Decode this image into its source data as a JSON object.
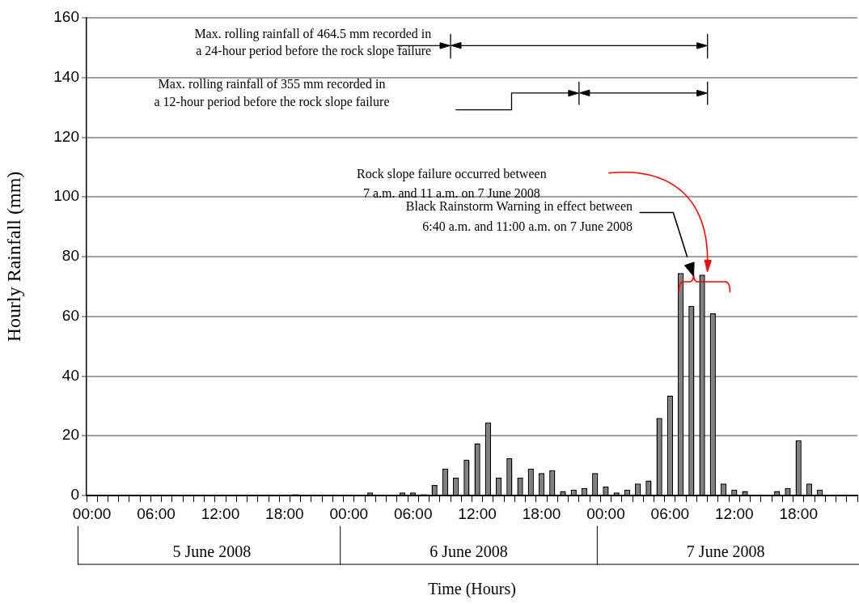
{
  "chart_data": {
    "type": "bar",
    "xlabel": "Time (Hours)",
    "ylabel": "Hourly Rainfall (mm)",
    "categories": [
      "00:00",
      null,
      null,
      null,
      null,
      null,
      "06:00",
      null,
      null,
      null,
      null,
      null,
      "12:00",
      null,
      null,
      null,
      null,
      null,
      "18:00",
      null,
      null,
      null,
      null,
      null,
      "00:00",
      null,
      null,
      null,
      null,
      null,
      "06:00",
      null,
      null,
      null,
      null,
      null,
      "12:00",
      null,
      null,
      null,
      null,
      null,
      "18:00",
      null,
      null,
      null,
      null,
      null,
      "00:00",
      null,
      null,
      null,
      null,
      null,
      "06:00",
      null,
      null,
      null,
      null,
      null,
      "12:00",
      null,
      null,
      null,
      null,
      null,
      "18:00",
      null,
      null,
      null,
      null,
      null
    ],
    "values": [
      0,
      0,
      0,
      0,
      0,
      0,
      0,
      0,
      0,
      0,
      0,
      0,
      0,
      0,
      0,
      0,
      0,
      0,
      0,
      0.5,
      0,
      0,
      0,
      0,
      0,
      0,
      1,
      0,
      0,
      1,
      1,
      0.5,
      3.5,
      9,
      6,
      12,
      17.5,
      24.5,
      6,
      12.5,
      6,
      9,
      7.5,
      8.5,
      1.5,
      2,
      2.5,
      7.5,
      3,
      1,
      2,
      4,
      5,
      26,
      33.5,
      74.5,
      63.5,
      74,
      61,
      4,
      2,
      1.5,
      0,
      0,
      1.5,
      2.5,
      18.5,
      4,
      2,
      0,
      0,
      0
    ],
    "color": "#808080",
    "ylim": [
      0,
      160
    ],
    "yticks": [
      0,
      20,
      40,
      60,
      80,
      100,
      120,
      140,
      160
    ],
    "grid": "y",
    "annotations": [
      "Max. rolling rainfall of 464.5 mm recorded in\na 24-hour period before the rock slope failure",
      "Max. rolling rainfall of 355 mm recorded in\na 12-hour period before the rock slope failure",
      "Rock slope failure occurred between\n7 a.m. and 11 a.m. on 7 June 2008",
      "Black Rainstorm Warning in effect between\n6:40 a.m. and 11:00 a.m. on 7 June 2008",
      "5 June 2008",
      "6 June 2008",
      "7 June 2008"
    ]
  }
}
